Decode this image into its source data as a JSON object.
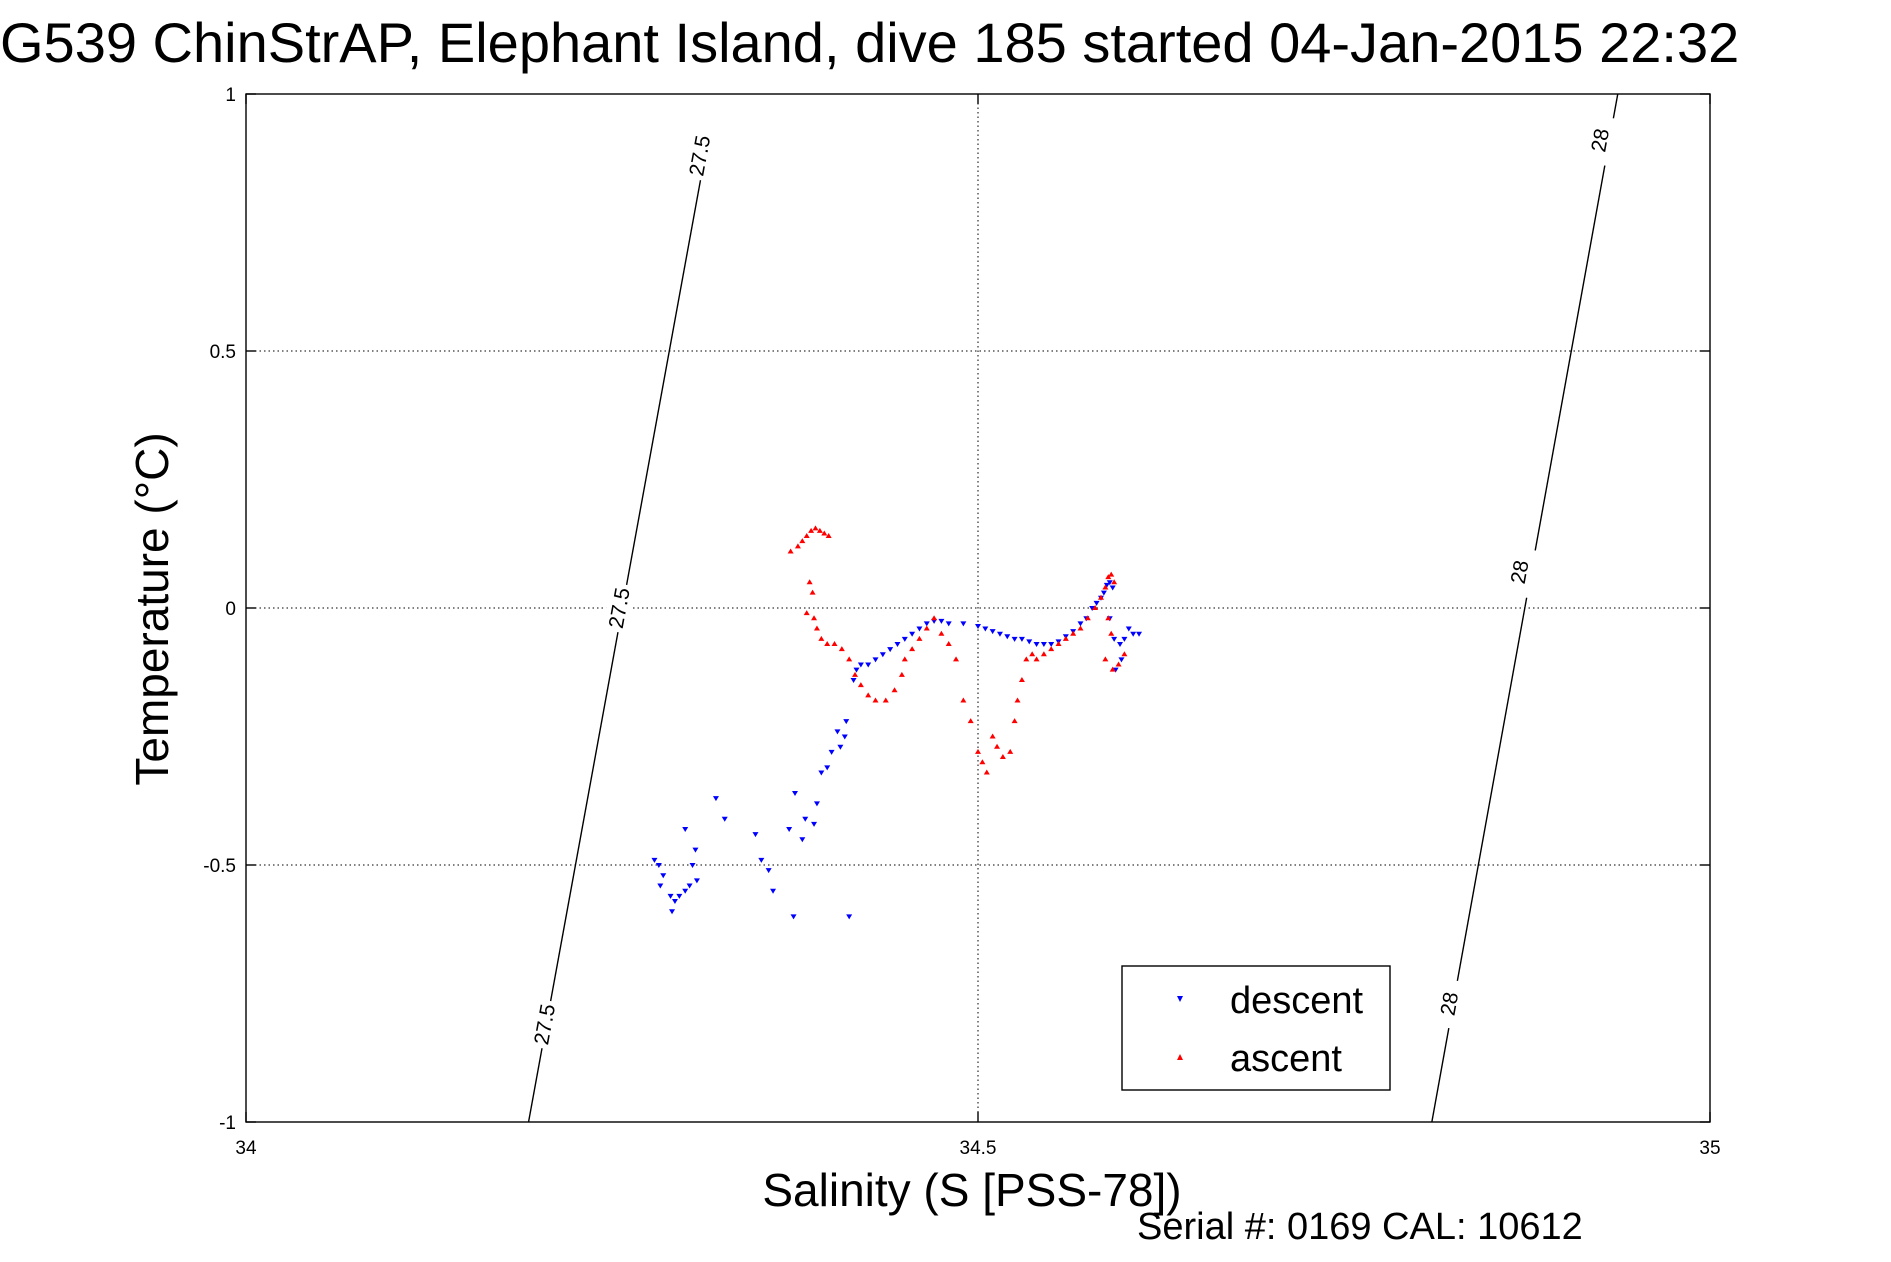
{
  "chart_data": {
    "type": "scatter",
    "title": "G539 ChinStrAP, Elephant Island, dive 185 started 04-Jan-2015 22:32",
    "xlabel": "Salinity (S [PSS-78])",
    "ylabel": "Temperature (°C)",
    "xlim": [
      34,
      35
    ],
    "ylim": [
      -1,
      1
    ],
    "x_ticks": [
      "34",
      "34.5",
      "35"
    ],
    "y_ticks": [
      "1",
      "0.5",
      "0",
      "-0.5",
      "-1"
    ],
    "grid": true,
    "legend_position": "bottom-right",
    "footer": "Serial #: 0169 CAL: 10612",
    "contours": [
      {
        "label": "27.5",
        "points": [
          [
            34.193,
            -1.0
          ],
          [
            34.314,
            0.888
          ]
        ],
        "label_positions": [
          [
            34.204,
            -0.81
          ],
          [
            34.255,
            0.0
          ],
          [
            34.31,
            0.88
          ]
        ]
      },
      {
        "label": "28",
        "points": [
          [
            34.81,
            -1.0
          ],
          [
            34.937,
            1.0
          ]
        ],
        "label_positions": [
          [
            34.822,
            -0.77
          ],
          [
            34.87,
            0.07
          ],
          [
            34.925,
            0.91
          ]
        ]
      }
    ],
    "series": [
      {
        "name": "descent",
        "color": "#0000ff",
        "marker": "triangle-down",
        "points": [
          [
            34.279,
            -0.49
          ],
          [
            34.282,
            -0.5
          ],
          [
            34.285,
            -0.52
          ],
          [
            34.283,
            -0.54
          ],
          [
            34.29,
            -0.56
          ],
          [
            34.291,
            -0.59
          ],
          [
            34.293,
            -0.57
          ],
          [
            34.296,
            -0.56
          ],
          [
            34.3,
            -0.55
          ],
          [
            34.303,
            -0.54
          ],
          [
            34.305,
            -0.5
          ],
          [
            34.307,
            -0.47
          ],
          [
            34.308,
            -0.53
          ],
          [
            34.3,
            -0.43
          ],
          [
            34.321,
            -0.37
          ],
          [
            34.327,
            -0.41
          ],
          [
            34.348,
            -0.44
          ],
          [
            34.352,
            -0.49
          ],
          [
            34.357,
            -0.51
          ],
          [
            34.36,
            -0.55
          ],
          [
            34.374,
            -0.6
          ],
          [
            34.371,
            -0.43
          ],
          [
            34.375,
            -0.36
          ],
          [
            34.38,
            -0.45
          ],
          [
            34.382,
            -0.41
          ],
          [
            34.388,
            -0.42
          ],
          [
            34.39,
            -0.38
          ],
          [
            34.393,
            -0.32
          ],
          [
            34.397,
            -0.31
          ],
          [
            34.4,
            -0.28
          ],
          [
            34.404,
            -0.24
          ],
          [
            34.406,
            -0.27
          ],
          [
            34.409,
            -0.25
          ],
          [
            34.41,
            -0.22
          ],
          [
            34.412,
            -0.6
          ],
          [
            34.415,
            -0.14
          ],
          [
            34.417,
            -0.12
          ],
          [
            34.42,
            -0.11
          ],
          [
            34.425,
            -0.11
          ],
          [
            34.43,
            -0.1
          ],
          [
            34.435,
            -0.09
          ],
          [
            34.44,
            -0.08
          ],
          [
            34.445,
            -0.07
          ],
          [
            34.45,
            -0.06
          ],
          [
            34.455,
            -0.05
          ],
          [
            34.46,
            -0.04
          ],
          [
            34.465,
            -0.03
          ],
          [
            34.47,
            -0.025
          ],
          [
            34.475,
            -0.025
          ],
          [
            34.48,
            -0.03
          ],
          [
            34.49,
            -0.03
          ],
          [
            34.5,
            -0.035
          ],
          [
            34.505,
            -0.04
          ],
          [
            34.51,
            -0.045
          ],
          [
            34.515,
            -0.05
          ],
          [
            34.52,
            -0.055
          ],
          [
            34.525,
            -0.06
          ],
          [
            34.53,
            -0.06
          ],
          [
            34.535,
            -0.065
          ],
          [
            34.54,
            -0.07
          ],
          [
            34.545,
            -0.07
          ],
          [
            34.55,
            -0.07
          ],
          [
            34.555,
            -0.065
          ],
          [
            34.56,
            -0.055
          ],
          [
            34.565,
            -0.045
          ],
          [
            34.57,
            -0.03
          ],
          [
            34.574,
            -0.02
          ],
          [
            34.578,
            0.0
          ],
          [
            34.581,
            0.01
          ],
          [
            34.584,
            0.02
          ],
          [
            34.586,
            0.03
          ],
          [
            34.588,
            0.045
          ],
          [
            34.59,
            0.05
          ],
          [
            34.592,
            0.04
          ],
          [
            34.59,
            -0.02
          ],
          [
            34.593,
            -0.06
          ],
          [
            34.597,
            -0.07
          ],
          [
            34.6,
            -0.06
          ],
          [
            34.603,
            -0.04
          ],
          [
            34.598,
            -0.1
          ],
          [
            34.594,
            -0.12
          ],
          [
            34.606,
            -0.05
          ],
          [
            34.61,
            -0.05
          ]
        ]
      },
      {
        "name": "ascent",
        "color": "#ff0000",
        "marker": "triangle-up",
        "points": [
          [
            34.372,
            0.11
          ],
          [
            34.377,
            0.12
          ],
          [
            34.38,
            0.13
          ],
          [
            34.383,
            0.14
          ],
          [
            34.386,
            0.15
          ],
          [
            34.389,
            0.155
          ],
          [
            34.392,
            0.15
          ],
          [
            34.395,
            0.145
          ],
          [
            34.398,
            0.14
          ],
          [
            34.385,
            0.05
          ],
          [
            34.387,
            0.03
          ],
          [
            34.383,
            -0.01
          ],
          [
            34.388,
            -0.02
          ],
          [
            34.39,
            -0.04
          ],
          [
            34.393,
            -0.06
          ],
          [
            34.397,
            -0.07
          ],
          [
            34.402,
            -0.07
          ],
          [
            34.407,
            -0.08
          ],
          [
            34.412,
            -0.1
          ],
          [
            34.416,
            -0.13
          ],
          [
            34.42,
            -0.15
          ],
          [
            34.425,
            -0.17
          ],
          [
            34.43,
            -0.18
          ],
          [
            34.437,
            -0.18
          ],
          [
            34.443,
            -0.16
          ],
          [
            34.448,
            -0.13
          ],
          [
            34.45,
            -0.1
          ],
          [
            34.455,
            -0.08
          ],
          [
            34.46,
            -0.06
          ],
          [
            34.465,
            -0.04
          ],
          [
            34.47,
            -0.02
          ],
          [
            34.475,
            -0.05
          ],
          [
            34.48,
            -0.07
          ],
          [
            34.485,
            -0.1
          ],
          [
            34.49,
            -0.18
          ],
          [
            34.495,
            -0.22
          ],
          [
            34.5,
            -0.28
          ],
          [
            34.503,
            -0.3
          ],
          [
            34.506,
            -0.32
          ],
          [
            34.51,
            -0.25
          ],
          [
            34.513,
            -0.27
          ],
          [
            34.517,
            -0.29
          ],
          [
            34.522,
            -0.28
          ],
          [
            34.525,
            -0.22
          ],
          [
            34.527,
            -0.18
          ],
          [
            34.53,
            -0.14
          ],
          [
            34.533,
            -0.1
          ],
          [
            34.537,
            -0.09
          ],
          [
            34.54,
            -0.1
          ],
          [
            34.545,
            -0.09
          ],
          [
            34.55,
            -0.08
          ],
          [
            34.555,
            -0.07
          ],
          [
            34.56,
            -0.06
          ],
          [
            34.565,
            -0.05
          ],
          [
            34.57,
            -0.04
          ],
          [
            34.575,
            -0.02
          ],
          [
            34.58,
            0.0
          ],
          [
            34.584,
            0.02
          ],
          [
            34.587,
            0.04
          ],
          [
            34.589,
            0.06
          ],
          [
            34.591,
            0.065
          ],
          [
            34.593,
            0.05
          ],
          [
            34.589,
            -0.02
          ],
          [
            34.591,
            -0.05
          ],
          [
            34.587,
            -0.1
          ],
          [
            34.592,
            -0.12
          ],
          [
            34.596,
            -0.11
          ],
          [
            34.6,
            -0.09
          ]
        ]
      }
    ]
  }
}
